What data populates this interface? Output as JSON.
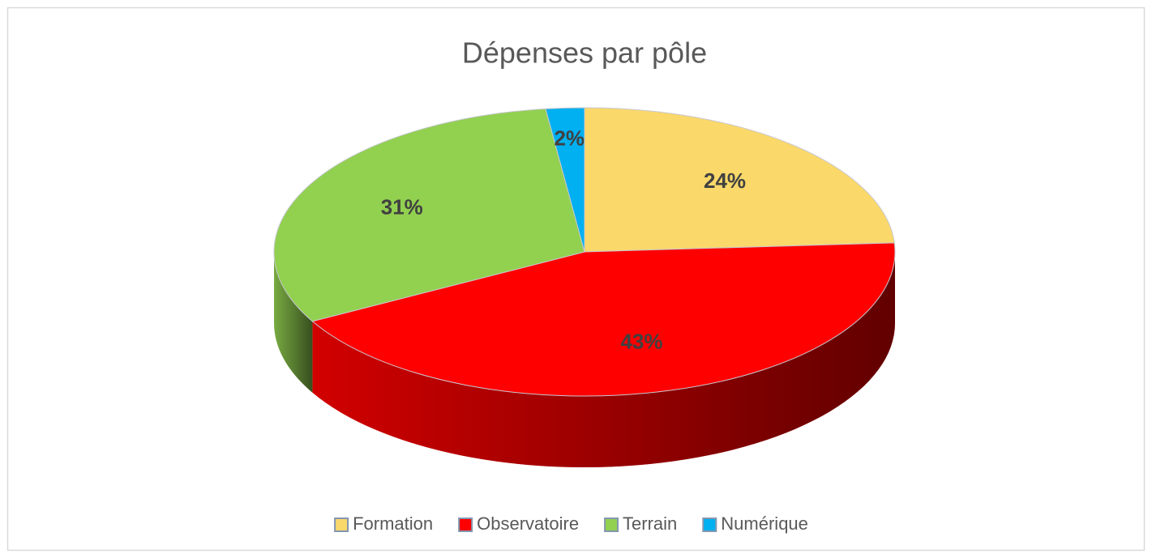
{
  "chart_data": {
    "type": "pie3d",
    "title": "Dépenses par pôle",
    "categories": [
      "Formation",
      "Observatoire",
      "Terrain",
      "Numérique"
    ],
    "values": [
      24,
      43,
      31,
      2
    ],
    "value_labels": [
      "24%",
      "43%",
      "31%",
      "2%"
    ],
    "colors": [
      "#fad86a",
      "#ff0000",
      "#92d050",
      "#00b0f0"
    ],
    "legend": "bottom"
  }
}
